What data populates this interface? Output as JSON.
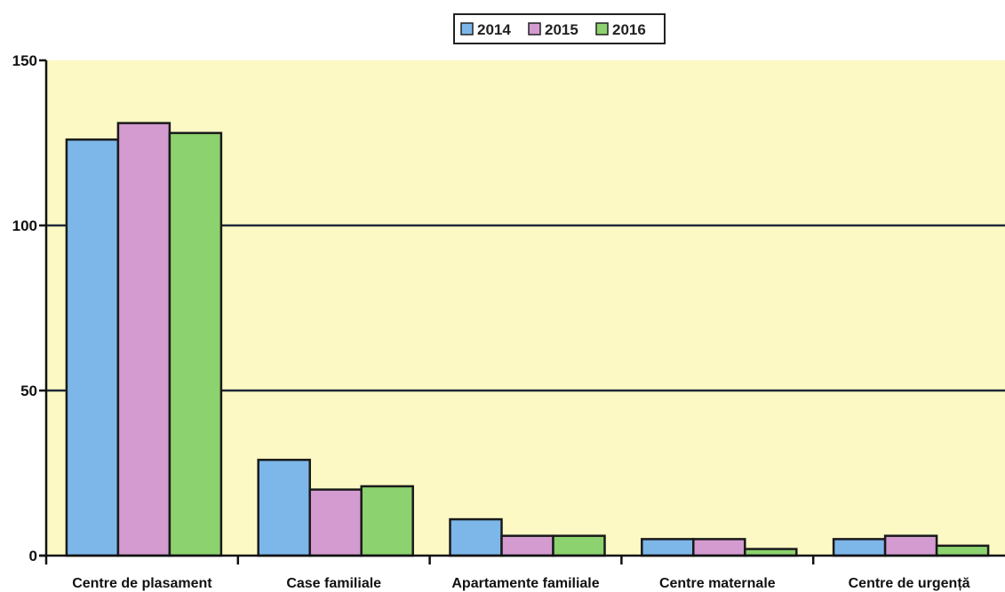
{
  "chart_data": {
    "type": "bar",
    "categories": [
      "Centre de plasament",
      "Case familiale",
      "Apartamente familiale",
      "Centre maternale",
      "Centre de urgență"
    ],
    "series": [
      {
        "name": "2014",
        "values": [
          126,
          29,
          11,
          5,
          5
        ],
        "color": "#7db7ea"
      },
      {
        "name": "2015",
        "values": [
          131,
          20,
          6,
          5,
          6
        ],
        "color": "#d49bd0"
      },
      {
        "name": "2016",
        "values": [
          128,
          21,
          6,
          2,
          3
        ],
        "color": "#8cd26e"
      }
    ],
    "ylim": [
      0,
      150
    ],
    "yticks": [
      0,
      50,
      100,
      150
    ],
    "grid": true,
    "legend_position": "top-center",
    "plot_background": "#fcf9c4",
    "title": "",
    "xlabel": "",
    "ylabel": ""
  }
}
